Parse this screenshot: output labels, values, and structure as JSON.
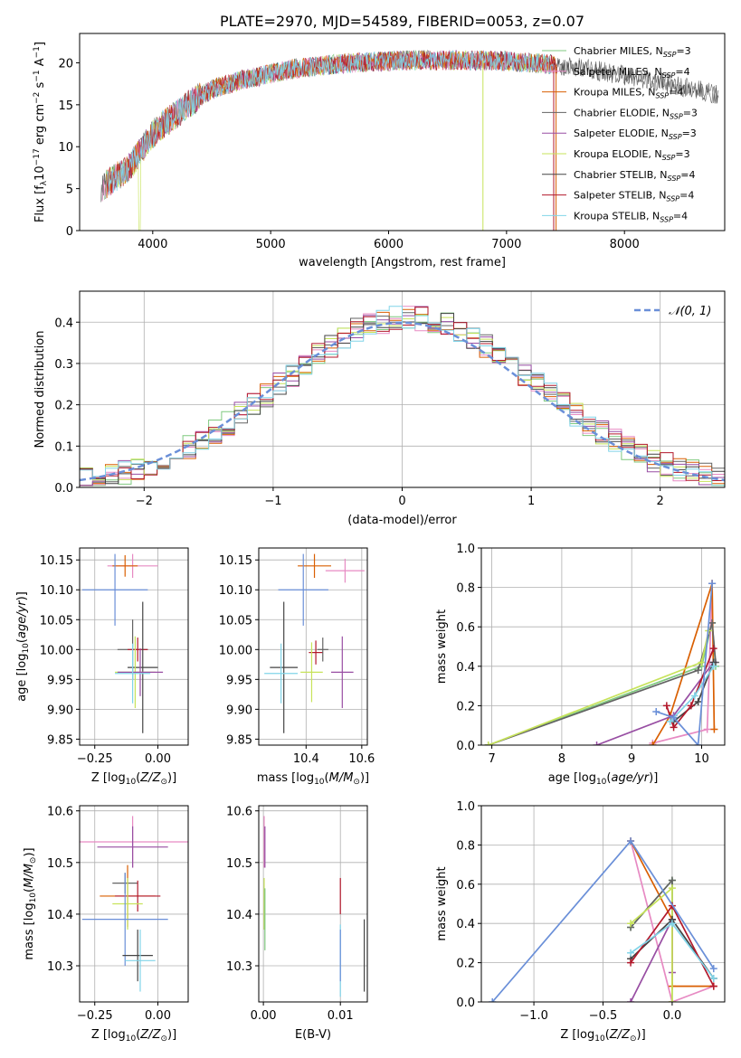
{
  "colors": [
    "#7fc97f",
    "#e78ac3",
    "#d95f02",
    "#636363",
    "#984ea3",
    "#c7e35a",
    "#444444",
    "#b2182b",
    "#80d4e8",
    "#6a8fd8"
  ],
  "chart_data": [
    {
      "id": "spectrum",
      "type": "line",
      "title": "PLATE=2970, MJD=54589, FIBERID=0053, z=0.07",
      "xlabel": "wavelength [Angstrom, rest frame]",
      "ylabel": "Flux [fλ10⁻¹⁷ erg cm⁻² s⁻¹ A⁻¹]",
      "xlim": [
        3380,
        8850
      ],
      "ylim": [
        0,
        23.5
      ],
      "xticks": [
        4000,
        5000,
        6000,
        7000,
        8000
      ],
      "yticks": [
        0,
        5,
        10,
        15,
        20
      ],
      "grid": false,
      "legend_position": "right",
      "continuum": {
        "x": [
          3550,
          3600,
          3650,
          3700,
          3750,
          3800,
          3850,
          3900,
          3950,
          4000,
          4100,
          4200,
          4300,
          4400,
          4500,
          4600,
          4800,
          5000,
          5200,
          5400,
          5600,
          5800,
          6000,
          6200,
          6400,
          6600,
          6800,
          7000,
          7200,
          7400,
          7600,
          7800,
          8000,
          8200,
          8400,
          8600,
          8800
        ],
        "y": [
          5,
          5.5,
          6,
          6.5,
          7,
          7.5,
          8.5,
          9.5,
          10.5,
          11.5,
          12.8,
          13.8,
          15,
          16,
          16.8,
          17.3,
          18.1,
          18.7,
          19.3,
          19.6,
          19.9,
          20.1,
          20.2,
          20.3,
          20.3,
          20.3,
          20.3,
          20.2,
          20,
          19.8,
          19.5,
          19,
          18.5,
          18,
          17.4,
          16.8,
          16.2
        ]
      },
      "series": [
        {
          "name": "Chabrier MILES, N_SSP=3",
          "label_main": "Chabrier MILES, N",
          "label_sub": "SSP",
          "label_tail": "=3"
        },
        {
          "name": "Salpeter MILES, N_SSP=4",
          "label_main": "Salpeter MILES, N",
          "label_sub": "SSP",
          "label_tail": "=4"
        },
        {
          "name": "Kroupa MILES, N_SSP=4",
          "label_main": "Kroupa MILES, N",
          "label_sub": "SSP",
          "label_tail": "=4"
        },
        {
          "name": "Chabrier ELODIE, N_SSP=3",
          "label_main": "Chabrier ELODIE, N",
          "label_sub": "SSP",
          "label_tail": "=3"
        },
        {
          "name": "Salpeter ELODIE, N_SSP=3",
          "label_main": "Salpeter ELODIE, N",
          "label_sub": "SSP",
          "label_tail": "=3"
        },
        {
          "name": "Kroupa ELODIE, N_SSP=3",
          "label_main": "Kroupa ELODIE, N",
          "label_sub": "SSP",
          "label_tail": "=3"
        },
        {
          "name": "Chabrier STELIB, N_SSP=4",
          "label_main": "Chabrier STELIB, N",
          "label_sub": "SSP",
          "label_tail": "=4"
        },
        {
          "name": "Salpeter STELIB, N_SSP=4",
          "label_main": "Salpeter STELIB, N",
          "label_sub": "SSP",
          "label_tail": "=4"
        },
        {
          "name": "Kroupa STELIB, N_SSP=4",
          "label_main": "Kroupa STELIB, N",
          "label_sub": "SSP",
          "label_tail": "=4"
        }
      ]
    },
    {
      "id": "residuals",
      "type": "line",
      "xlabel": "(data-model)/error",
      "ylabel": "Normed distribution",
      "xlim": [
        -2.5,
        2.5
      ],
      "ylim": [
        0,
        0.475
      ],
      "xticks": [
        -2,
        -1,
        0,
        1,
        2
      ],
      "xticklabels": [
        "−2",
        "−1",
        "0",
        "1",
        "2"
      ],
      "yticks": [
        0,
        0.1,
        0.2,
        0.3,
        0.4
      ],
      "yticklabels": [
        "0.0",
        "0.1",
        "0.2",
        "0.3",
        "0.4"
      ],
      "grid": true,
      "legend_position": "top-right",
      "reference_curve": {
        "name": "𝒩(0, 1)",
        "mean": 0,
        "sigma": 1
      },
      "histogram_bin_width": 0.1
    },
    {
      "id": "age_vs_Z",
      "type": "scatter",
      "xlabel": "Z [log₁₀(Z/Z⊙)]",
      "ylabel": "age  [log₁₀(age/yr)]",
      "xlim": [
        -0.31,
        0.12
      ],
      "ylim": [
        9.84,
        10.17
      ],
      "xticks": [
        -0.25,
        0.0
      ],
      "xticklabels": [
        "−0.25",
        "0.00"
      ],
      "yticks": [
        9.85,
        9.9,
        9.95,
        10.0,
        10.05,
        10.1,
        10.15
      ],
      "yticklabels": [
        "9.85",
        "9.90",
        "9.95",
        "10.00",
        "10.05",
        "10.10",
        "10.15"
      ],
      "grid": true,
      "points": [
        {
          "x": -0.1,
          "y": 10.14,
          "xerr": 0.1,
          "yerr": 0.02,
          "color": 1
        },
        {
          "x": -0.13,
          "y": 10.14,
          "xerr": 0.05,
          "yerr": 0.018,
          "color": 2
        },
        {
          "x": -0.17,
          "y": 10.1,
          "xerr": 0.13,
          "yerr": 0.06,
          "color": 9
        },
        {
          "x": -0.1,
          "y": 10.0,
          "xerr": 0.06,
          "yerr": 0.05,
          "color": 3
        },
        {
          "x": -0.08,
          "y": 10.0,
          "xerr": 0.04,
          "yerr": 0.02,
          "color": 7
        },
        {
          "x": -0.06,
          "y": 9.97,
          "xerr": 0.06,
          "yerr": 0.11,
          "color": 6
        },
        {
          "x": -0.09,
          "y": 9.962,
          "xerr": 0.08,
          "yerr": 0.06,
          "color": 5
        },
        {
          "x": -0.07,
          "y": 9.962,
          "xerr": 0.09,
          "yerr": 0.04,
          "color": 4
        },
        {
          "x": -0.1,
          "y": 9.96,
          "xerr": 0.07,
          "yerr": 0.05,
          "color": 8
        }
      ]
    },
    {
      "id": "age_vs_mass",
      "type": "scatter",
      "xlabel": "mass [log₁₀(M/M⊙)]",
      "xlim": [
        10.23,
        10.62
      ],
      "ylim": [
        9.84,
        10.17
      ],
      "xticks": [
        10.4,
        10.6
      ],
      "xticklabels": [
        "10.4",
        "10.6"
      ],
      "yticks": [
        9.85,
        9.9,
        9.95,
        10.0,
        10.05,
        10.1,
        10.15
      ],
      "yticklabels": [
        "9.85",
        "9.90",
        "9.95",
        "10.00",
        "10.05",
        "10.10",
        "10.15"
      ],
      "grid": true,
      "points": [
        {
          "x": 10.54,
          "y": 10.132,
          "xerr": 0.07,
          "yerr": 0.02,
          "color": 1
        },
        {
          "x": 10.43,
          "y": 10.14,
          "xerr": 0.06,
          "yerr": 0.02,
          "color": 2
        },
        {
          "x": 10.39,
          "y": 10.1,
          "xerr": 0.09,
          "yerr": 0.06,
          "color": 9
        },
        {
          "x": 10.435,
          "y": 9.995,
          "xerr": 0.025,
          "yerr": 0.02,
          "color": 7
        },
        {
          "x": 10.32,
          "y": 9.97,
          "xerr": 0.05,
          "yerr": 0.11,
          "color": 6
        },
        {
          "x": 10.53,
          "y": 9.962,
          "xerr": 0.04,
          "yerr": 0.06,
          "color": 4
        },
        {
          "x": 10.42,
          "y": 9.962,
          "xerr": 0.04,
          "yerr": 0.05,
          "color": 5
        },
        {
          "x": 10.31,
          "y": 9.96,
          "xerr": 0.06,
          "yerr": 0.05,
          "color": 8
        },
        {
          "x": 10.46,
          "y": 10.0,
          "xerr": 0.02,
          "yerr": 0.02,
          "color": 3
        }
      ]
    },
    {
      "id": "weights_vs_age",
      "type": "line",
      "xlabel": "age  [log₁₀(age/yr)]",
      "ylabel": "mass weight",
      "xlim": [
        6.85,
        10.33
      ],
      "ylim": [
        0,
        1.0
      ],
      "xticks": [
        7,
        8,
        9,
        10
      ],
      "yticks": [
        0,
        0.2,
        0.4,
        0.6,
        0.8,
        1.0
      ],
      "yticklabels": [
        "0.0",
        "0.2",
        "0.4",
        "0.6",
        "0.8",
        "1.0"
      ],
      "grid": true,
      "series": [
        {
          "color": 0,
          "x": [
            6.95,
            10.0,
            10.15,
            10.2
          ],
          "y": [
            0.0,
            0.4,
            0.62,
            0.4
          ]
        },
        {
          "color": 1,
          "x": [
            9.3,
            10.08,
            10.15
          ],
          "y": [
            0.01,
            0.08,
            0.82
          ]
        },
        {
          "color": 2,
          "x": [
            9.3,
            9.55,
            10.15,
            10.18
          ],
          "y": [
            0.0,
            0.15,
            0.82,
            0.08
          ]
        },
        {
          "color": 3,
          "x": [
            6.95,
            9.95,
            10.15,
            10.2
          ],
          "y": [
            0.0,
            0.38,
            0.62,
            0.42
          ]
        },
        {
          "color": 4,
          "x": [
            8.5,
            9.6,
            10.17
          ],
          "y": [
            0.0,
            0.15,
            0.42
          ]
        },
        {
          "color": 5,
          "x": [
            6.95,
            10.0,
            10.1
          ],
          "y": [
            0.0,
            0.42,
            0.58
          ]
        },
        {
          "color": 6,
          "x": [
            9.6,
            9.95,
            10.17
          ],
          "y": [
            0.12,
            0.22,
            0.42
          ]
        },
        {
          "color": 7,
          "x": [
            9.5,
            9.6,
            9.85,
            10.17
          ],
          "y": [
            0.2,
            0.09,
            0.2,
            0.49
          ]
        },
        {
          "color": 8,
          "x": [
            9.55,
            9.9,
            10.17
          ],
          "y": [
            0.12,
            0.25,
            0.4
          ]
        },
        {
          "color": 9,
          "x": [
            9.35,
            9.6,
            9.95,
            10.15
          ],
          "y": [
            0.17,
            0.14,
            0.0,
            0.82
          ]
        }
      ]
    },
    {
      "id": "mass_vs_Z",
      "type": "scatter",
      "xlabel": "Z [log₁₀(Z/Z⊙)]",
      "ylabel": "mass [log₁₀(M/M⊙)]",
      "xlim": [
        -0.31,
        0.12
      ],
      "ylim": [
        10.23,
        10.61
      ],
      "xticks": [
        -0.25,
        0.0
      ],
      "xticklabels": [
        "−0.25",
        "0.00"
      ],
      "yticks": [
        10.3,
        10.4,
        10.5,
        10.6
      ],
      "yticklabels": [
        "10.3",
        "10.4",
        "10.5",
        "10.6"
      ],
      "grid": true,
      "points": [
        {
          "x": -0.1,
          "y": 10.54,
          "xerr": 0.22,
          "yerr": 0.05,
          "color": 1
        },
        {
          "x": -0.1,
          "y": 10.53,
          "xerr": 0.14,
          "yerr": 0.04,
          "color": 4
        },
        {
          "x": -0.13,
          "y": 10.46,
          "xerr": 0.05,
          "yerr": 0.02,
          "color": 3
        },
        {
          "x": -0.12,
          "y": 10.435,
          "xerr": 0.11,
          "yerr": 0.06,
          "color": 2
        },
        {
          "x": -0.08,
          "y": 10.435,
          "xerr": 0.09,
          "yerr": 0.03,
          "color": 7
        },
        {
          "x": -0.12,
          "y": 10.42,
          "xerr": 0.06,
          "yerr": 0.05,
          "color": 5
        },
        {
          "x": -0.13,
          "y": 10.39,
          "xerr": 0.17,
          "yerr": 0.09,
          "color": 9
        },
        {
          "x": -0.08,
          "y": 10.32,
          "xerr": 0.06,
          "yerr": 0.05,
          "color": 6
        },
        {
          "x": -0.07,
          "y": 10.31,
          "xerr": 0.06,
          "yerr": 0.06,
          "color": 8
        }
      ]
    },
    {
      "id": "mass_vs_ebv",
      "type": "scatter",
      "xlabel": "E(B-V)",
      "xlim": [
        -0.0006,
        0.0135
      ],
      "ylim": [
        10.23,
        10.61
      ],
      "xticks": [
        0.0,
        0.01
      ],
      "xticklabels": [
        "0.00",
        "0.01"
      ],
      "yticks": [
        10.3,
        10.4,
        10.5,
        10.6
      ],
      "yticklabels": [
        "10.3",
        "10.4",
        "10.5",
        "10.6"
      ],
      "grid": true,
      "points": [
        {
          "x": 0.0001,
          "y": 10.54,
          "xerr": 0,
          "yerr": 0.05,
          "color": 1
        },
        {
          "x": 0.0002,
          "y": 10.53,
          "xerr": 0,
          "yerr": 0.04,
          "color": 4
        },
        {
          "x": 0.0001,
          "y": 10.42,
          "xerr": 0,
          "yerr": 0.05,
          "color": 5
        },
        {
          "x": 0.0002,
          "y": 10.39,
          "xerr": 0,
          "yerr": 0.06,
          "color": 0
        },
        {
          "x": 0.01,
          "y": 10.435,
          "xerr": 0,
          "yerr": 0.035,
          "color": 7
        },
        {
          "x": 0.01,
          "y": 10.31,
          "xerr": 0,
          "yerr": 0.07,
          "color": 8
        },
        {
          "x": 0.01,
          "y": 10.32,
          "xerr": 0,
          "yerr": 0.05,
          "color": 9
        },
        {
          "x": 0.0131,
          "y": 10.32,
          "xerr": 0,
          "yerr": 0.07,
          "color": 6
        }
      ]
    },
    {
      "id": "weights_vs_Z",
      "type": "line",
      "xlabel": "Z [log₁₀(Z/Z⊙)]",
      "ylabel": "mass weight",
      "xlim": [
        -1.38,
        0.38
      ],
      "ylim": [
        0,
        1.0
      ],
      "xticks": [
        -1.0,
        -0.5,
        0.0
      ],
      "xticklabels": [
        "−1.0",
        "−0.5",
        "0.0"
      ],
      "yticks": [
        0,
        0.2,
        0.4,
        0.6,
        0.8,
        1.0
      ],
      "yticklabels": [
        "0.0",
        "0.2",
        "0.4",
        "0.6",
        "0.8",
        "1.0"
      ],
      "grid": true,
      "series": [
        {
          "color": 0,
          "x": [
            -0.3,
            0.0,
            0.0
          ],
          "y": [
            0.38,
            0.62,
            0.0
          ]
        },
        {
          "color": 1,
          "x": [
            -0.3,
            0.0,
            0.3
          ],
          "y": [
            0.82,
            0.0,
            0.08
          ]
        },
        {
          "color": 2,
          "x": [
            -0.3,
            0.0,
            0.0,
            0.3
          ],
          "y": [
            0.82,
            0.42,
            0.08,
            0.08
          ]
        },
        {
          "color": 3,
          "x": [
            -0.3,
            0.0,
            0.0
          ],
          "y": [
            0.38,
            0.62,
            0.42
          ]
        },
        {
          "color": 4,
          "x": [
            -0.3,
            0.0,
            0.0
          ],
          "y": [
            0.0,
            0.42,
            0.15
          ]
        },
        {
          "color": 5,
          "x": [
            -0.3,
            0.0,
            0.0
          ],
          "y": [
            0.4,
            0.58,
            0.0
          ]
        },
        {
          "color": 6,
          "x": [
            -0.3,
            0.0,
            0.3
          ],
          "y": [
            0.22,
            0.42,
            0.12
          ]
        },
        {
          "color": 7,
          "x": [
            -0.3,
            0.0,
            0.3
          ],
          "y": [
            0.2,
            0.49,
            0.08
          ]
        },
        {
          "color": 8,
          "x": [
            -0.3,
            0.0,
            0.3
          ],
          "y": [
            0.25,
            0.4,
            0.12
          ]
        },
        {
          "color": 9,
          "x": [
            -1.3,
            -0.3,
            0.3
          ],
          "y": [
            0.0,
            0.82,
            0.17
          ]
        }
      ]
    }
  ]
}
